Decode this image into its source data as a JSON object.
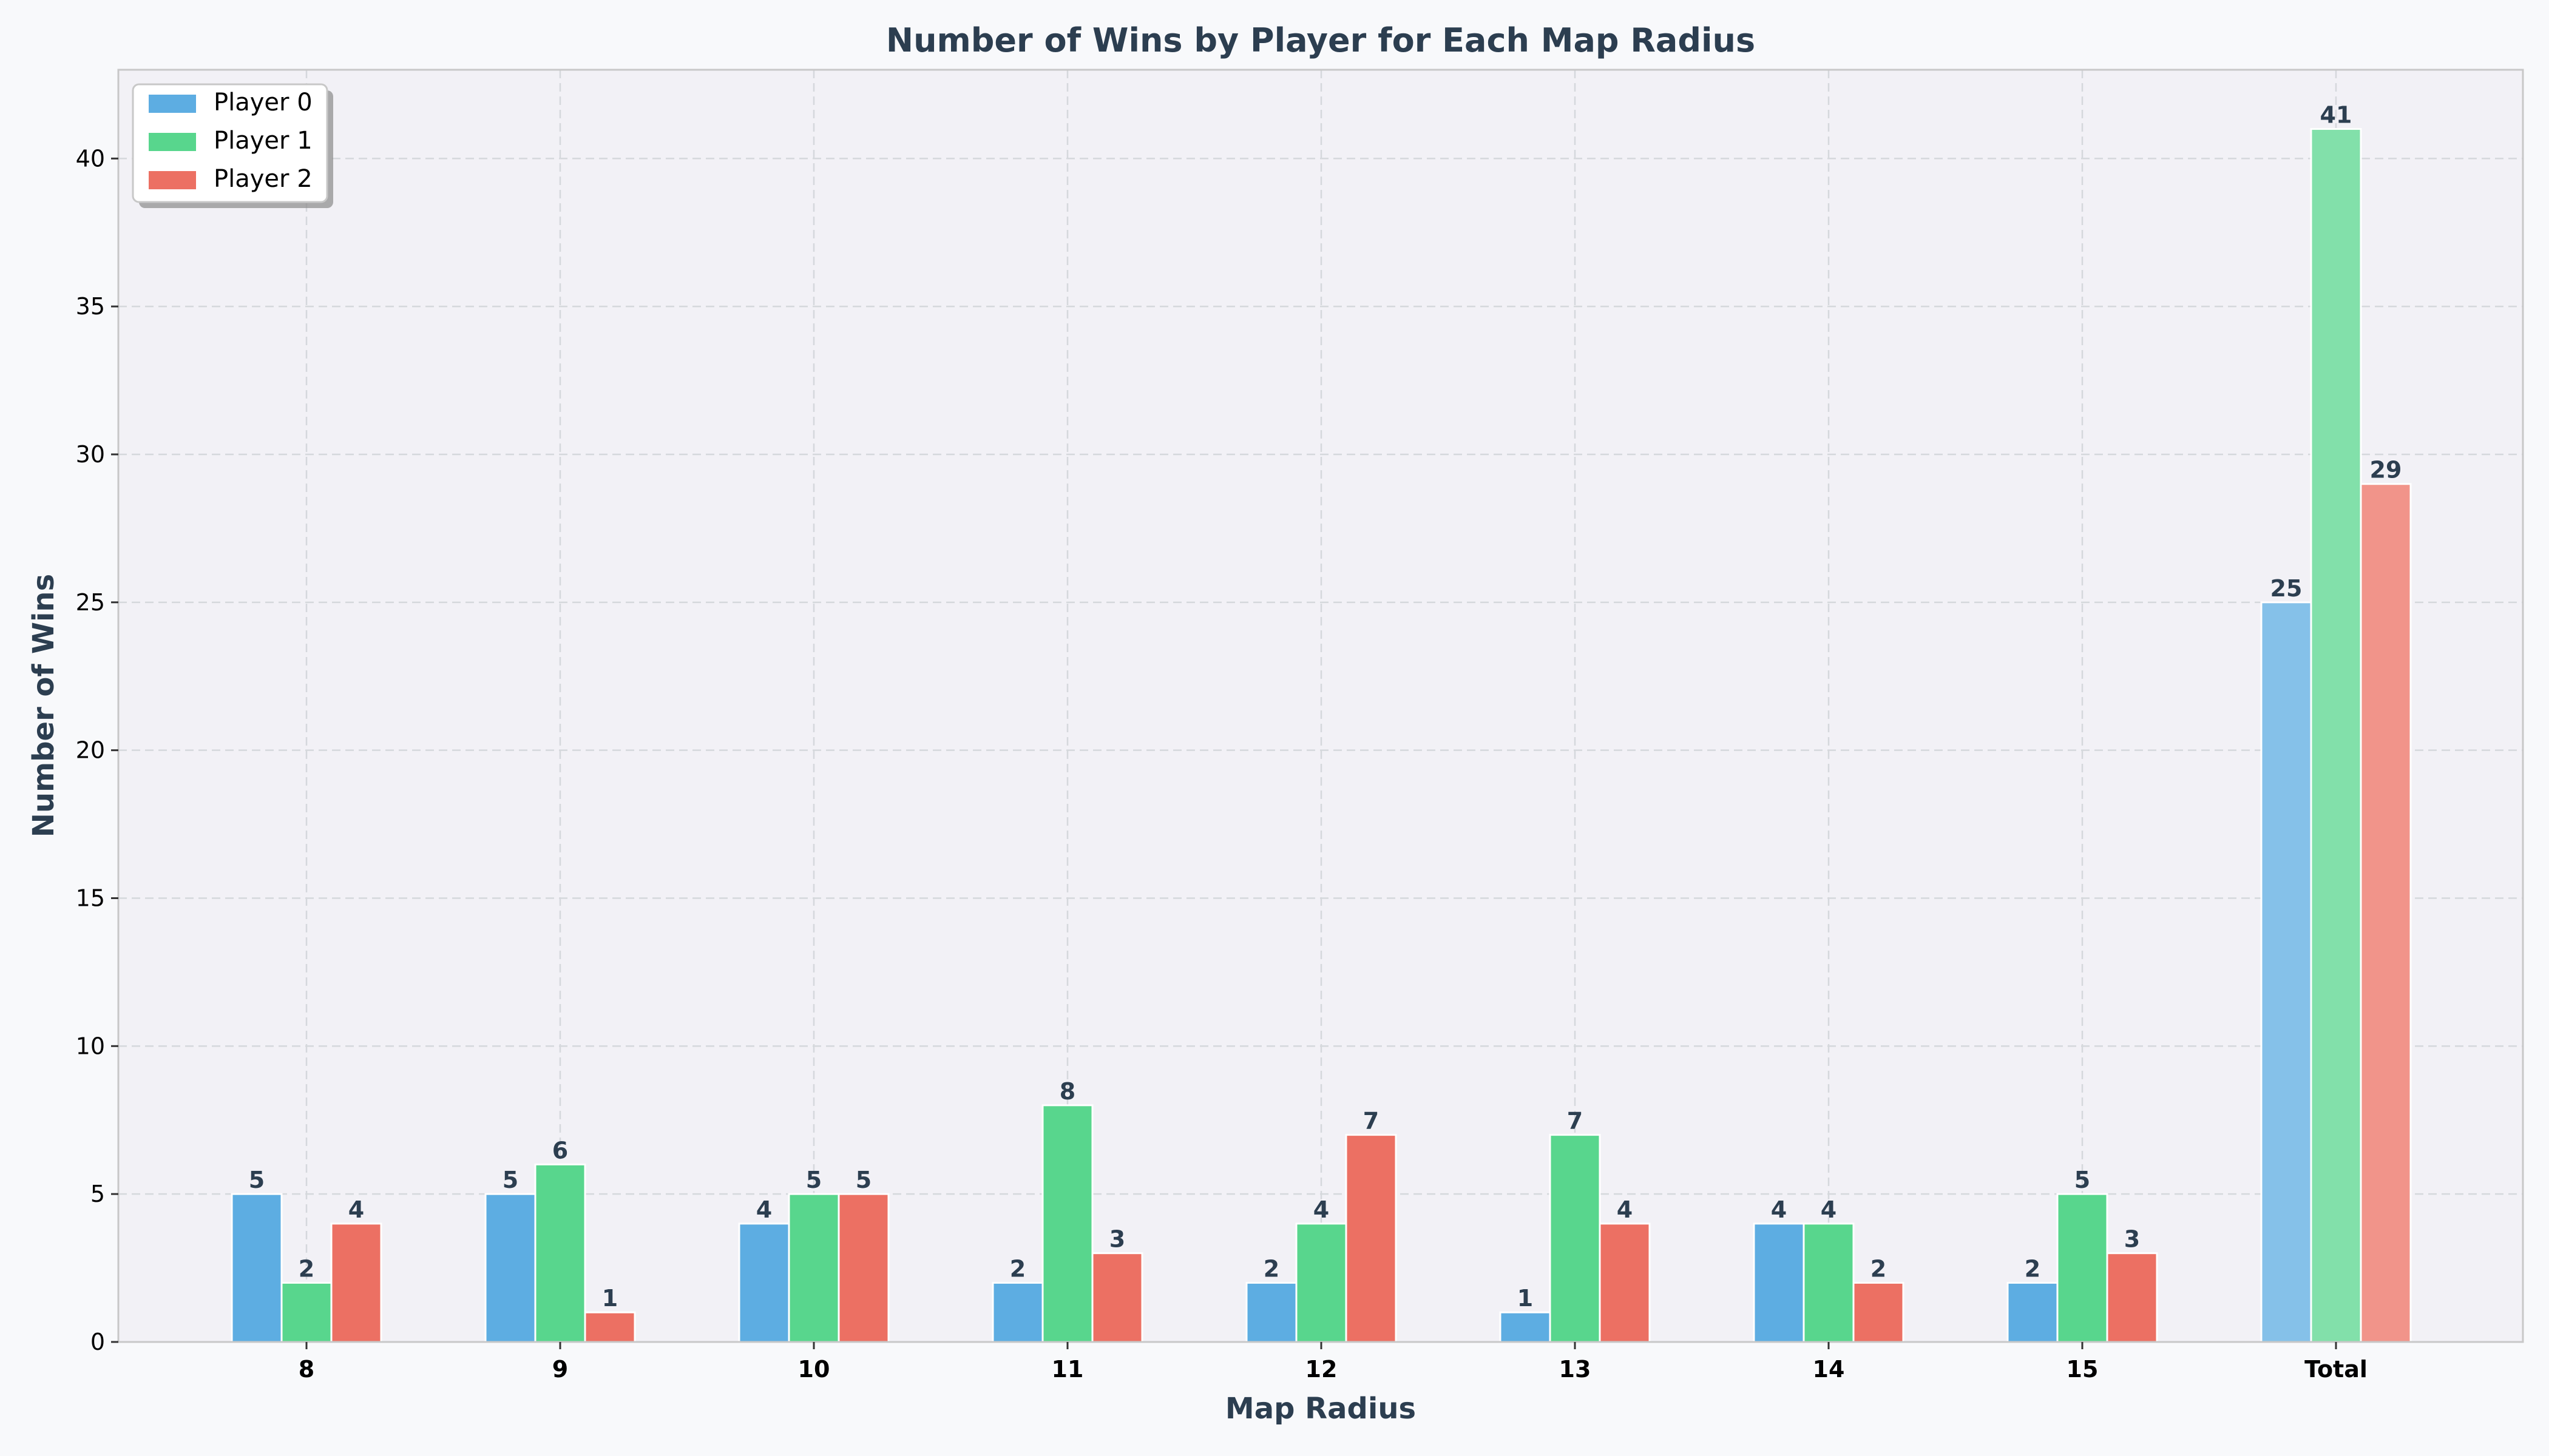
{
  "chart_data": {
    "type": "bar",
    "title": "Number of Wins by Player for Each Map Radius",
    "xlabel": "Map Radius",
    "ylabel": "Number of Wins",
    "categories": [
      "8",
      "9",
      "10",
      "11",
      "12",
      "13",
      "14",
      "15",
      "Total"
    ],
    "series": [
      {
        "name": "Player 0",
        "color": "#5dade2",
        "total_color": "#85c1e9",
        "values": [
          5,
          5,
          4,
          2,
          2,
          1,
          4,
          2,
          25
        ]
      },
      {
        "name": "Player 1",
        "color": "#58d68d",
        "total_color": "#82e0aa",
        "values": [
          2,
          6,
          5,
          8,
          4,
          7,
          4,
          5,
          41
        ]
      },
      {
        "name": "Player 2",
        "color": "#ec7063",
        "total_color": "#f1948a",
        "values": [
          4,
          1,
          5,
          3,
          7,
          4,
          2,
          3,
          29
        ]
      }
    ],
    "ylim": [
      0,
      43
    ],
    "yticks": [
      0,
      5,
      10,
      15,
      20,
      25,
      30,
      35,
      40
    ],
    "grid": true,
    "legend_position": "top-left",
    "colors": {
      "plot_background": "#f2f1f6",
      "figure_background": "#f8f9fb",
      "text": "#2c3e50",
      "grid": "#d5d8dc"
    }
  }
}
